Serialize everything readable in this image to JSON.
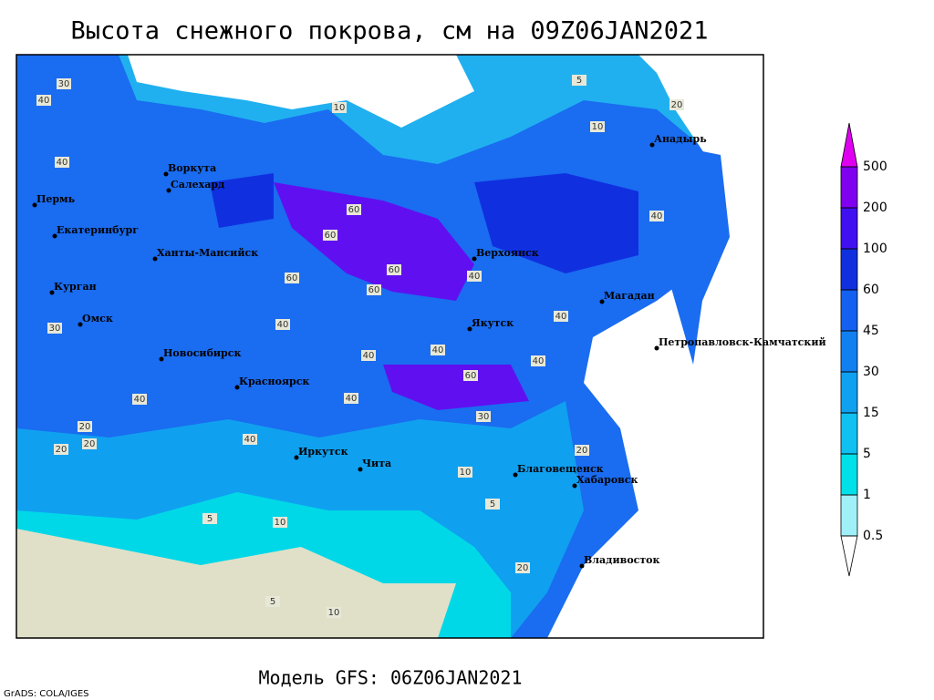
{
  "header": {
    "title": "Высота снежного покрова, см на 09Z06JAN2021"
  },
  "footer": {
    "model": "Модель GFS: 06Z06JAN2021",
    "credit": "GrADS: COLA/IGES"
  },
  "legend": {
    "levels": [
      0.5,
      1,
      5,
      15,
      30,
      45,
      60,
      100,
      200,
      500
    ],
    "colors": [
      "#ffffff",
      "#a0f0f8",
      "#00e0e8",
      "#10c0f0",
      "#10a0f0",
      "#1080f0",
      "#1460f0",
      "#1030e0",
      "#4010f0",
      "#8000f0",
      "#a000f0",
      "#e000f0"
    ]
  },
  "map": {
    "cities": [
      "Воркута",
      "Салехард",
      "Пермь",
      "Екатеринбург",
      "Ханты-Мансийск",
      "Курган",
      "Омск",
      "Новосибирск",
      "Красноярск",
      "Иркутск",
      "Чита",
      "Благовещенск",
      "Хабаровск",
      "Владивосток",
      "Якутск",
      "Верхоянск",
      "Магадан",
      "Петропавловск-Камчатский",
      "Анадырь"
    ],
    "contour_labels": [
      30,
      40,
      10,
      5,
      40,
      60,
      60,
      60,
      60,
      40,
      60,
      40,
      40,
      40,
      60,
      40,
      40,
      30,
      20,
      20,
      20,
      10,
      5,
      10,
      20,
      10,
      5,
      20,
      40,
      40,
      40,
      10,
      20,
      30,
      40,
      5
    ]
  }
}
